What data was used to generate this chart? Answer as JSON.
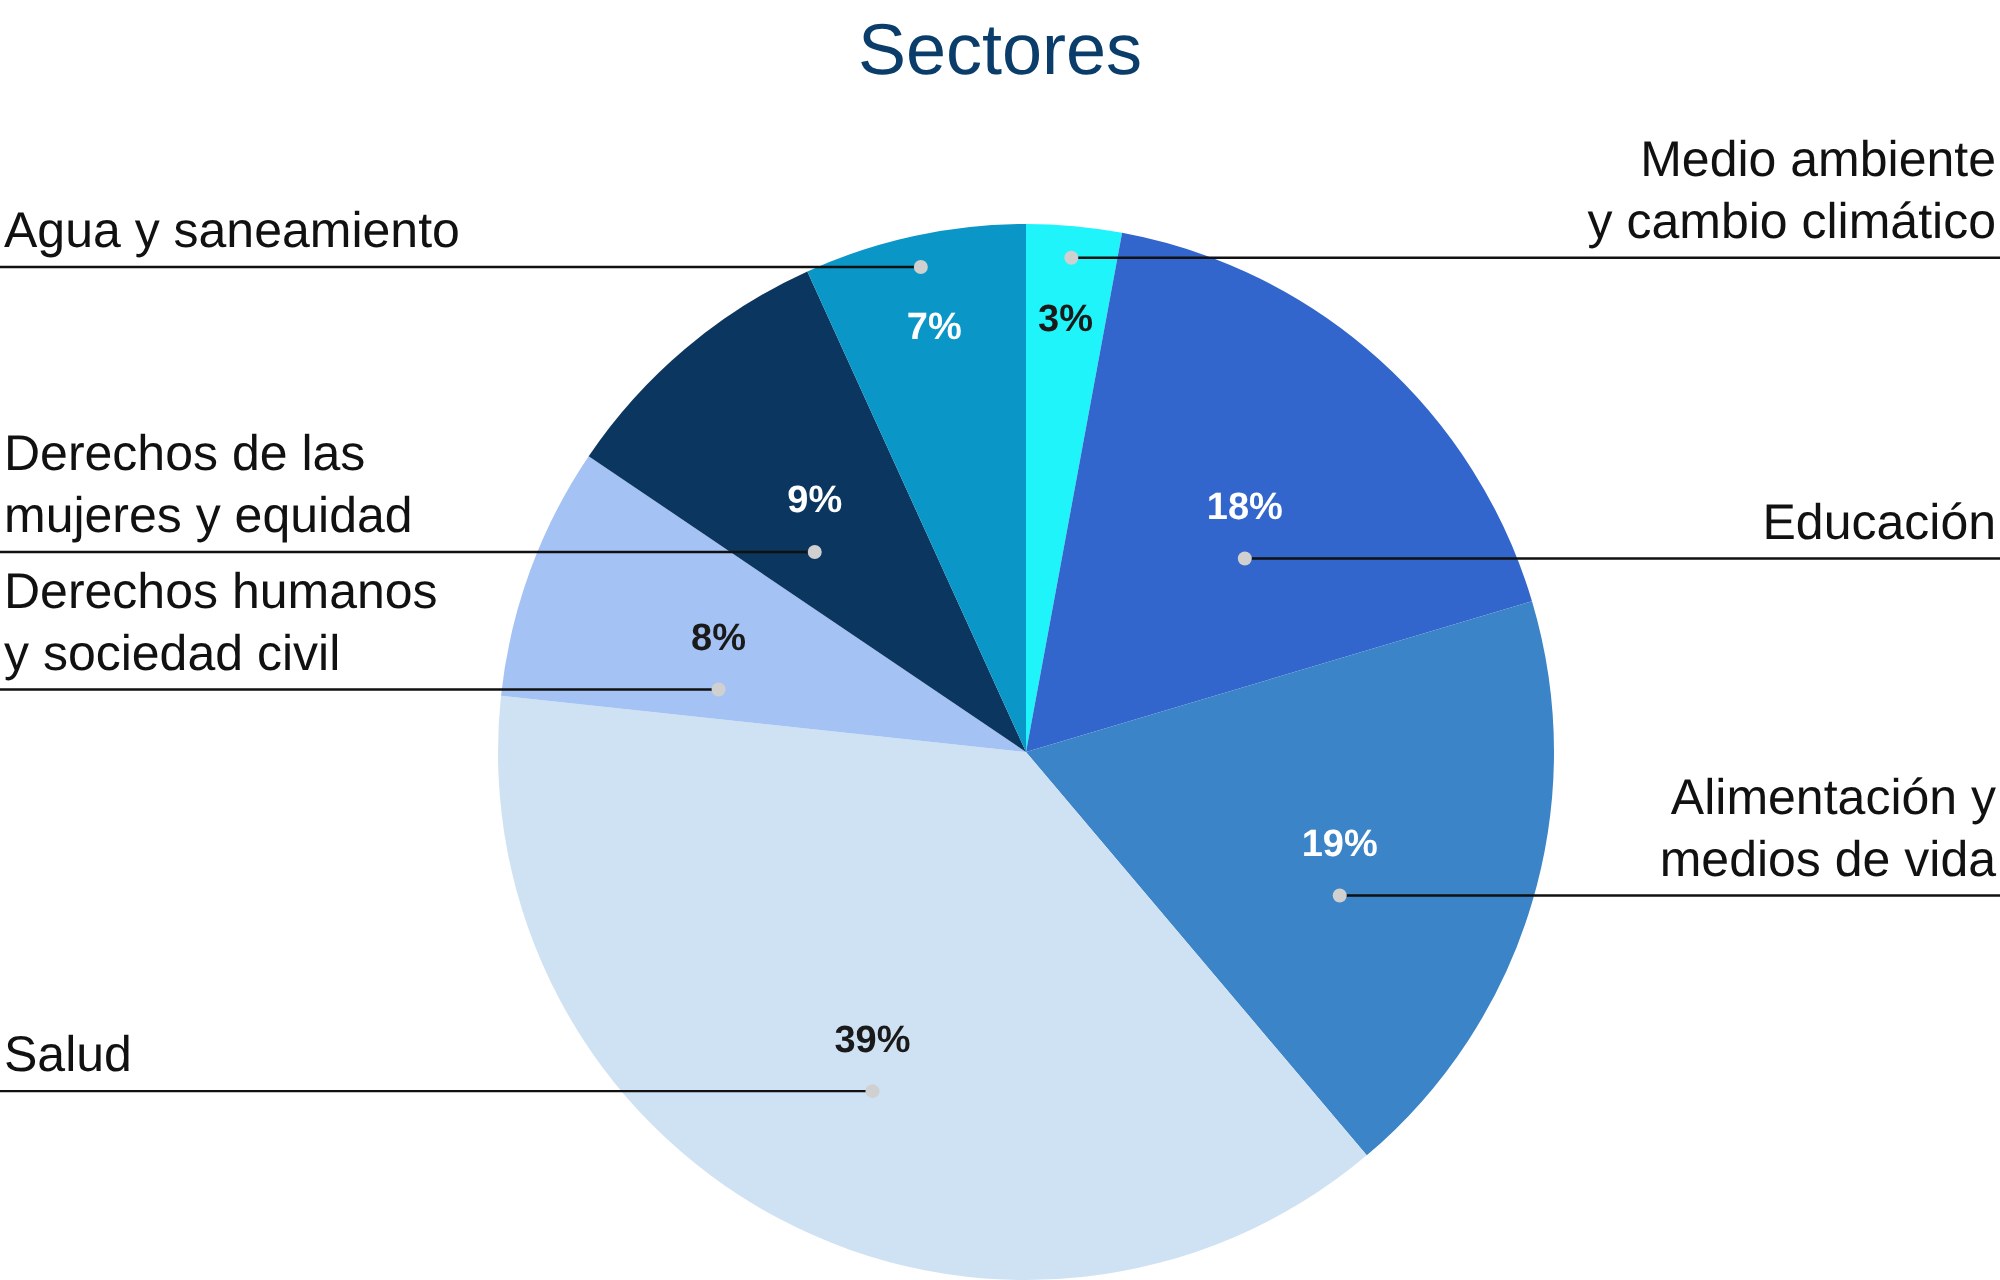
{
  "chart_data": {
    "type": "pie",
    "title": "Sectores",
    "categories": [
      "Medio ambiente\ny cambio climático",
      "Educación",
      "Alimentación y\nmedios de vida",
      "Salud",
      "Derechos humanos\ny sociedad civil",
      "Derechos de las\nmujeres y equidad",
      "Agua y saneamiento"
    ],
    "values": [
      3,
      18,
      19,
      39,
      8,
      9,
      7
    ],
    "value_labels": [
      "3%",
      "18%",
      "19%",
      "39%",
      "8%",
      "9%",
      "7%"
    ],
    "colors": [
      "#1ef4fa",
      "#3366cc",
      "#3a84c7",
      "#cfe2f3",
      "#a4c2f4",
      "#0b365f",
      "#0b96c8"
    ],
    "legend": false
  }
}
